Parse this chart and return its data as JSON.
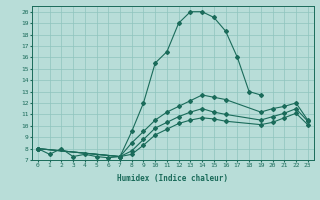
{
  "xlabel": "Humidex (Indice chaleur)",
  "line_color": "#1a6b5a",
  "bg_color": "#b8ddd8",
  "grid_color": "#8fc4be",
  "yticks": [
    7,
    8,
    9,
    10,
    11,
    12,
    13,
    14,
    15,
    16,
    17,
    18,
    19,
    20
  ],
  "xticks": [
    0,
    1,
    2,
    3,
    4,
    5,
    6,
    7,
    8,
    9,
    10,
    11,
    12,
    13,
    14,
    15,
    16,
    17,
    18,
    19,
    20,
    21,
    22,
    23
  ],
  "line1_x": [
    0,
    1,
    2,
    3,
    4,
    5,
    6,
    7,
    8,
    9,
    10,
    11,
    12,
    13,
    14,
    15,
    16,
    17,
    18,
    19
  ],
  "line1_y": [
    8,
    7.5,
    8,
    7.3,
    7.5,
    7.3,
    7.2,
    7.3,
    9.5,
    12.0,
    15.5,
    16.5,
    19.0,
    20.0,
    20.0,
    19.5,
    18.3,
    16.0,
    13.0,
    12.7
  ],
  "line2_x": [
    0,
    7,
    8,
    9,
    10,
    11,
    12,
    13,
    14,
    15,
    16,
    19,
    20,
    21,
    22,
    23
  ],
  "line2_y": [
    8,
    7.3,
    8.5,
    9.5,
    10.5,
    11.2,
    11.7,
    12.2,
    12.7,
    12.5,
    12.3,
    11.2,
    11.5,
    11.7,
    12.0,
    10.5
  ],
  "line3_x": [
    0,
    7,
    8,
    9,
    10,
    11,
    12,
    13,
    14,
    15,
    16,
    19,
    20,
    21,
    22,
    23
  ],
  "line3_y": [
    8,
    7.3,
    7.8,
    8.8,
    9.8,
    10.3,
    10.8,
    11.2,
    11.5,
    11.2,
    11.0,
    10.5,
    10.8,
    11.1,
    11.5,
    10.4
  ],
  "line4_x": [
    0,
    7,
    8,
    9,
    10,
    11,
    12,
    13,
    14,
    15,
    16,
    19,
    20,
    21,
    22,
    23
  ],
  "line4_y": [
    8,
    7.3,
    7.5,
    8.3,
    9.2,
    9.7,
    10.2,
    10.5,
    10.7,
    10.6,
    10.4,
    10.1,
    10.3,
    10.7,
    11.1,
    10.1
  ]
}
